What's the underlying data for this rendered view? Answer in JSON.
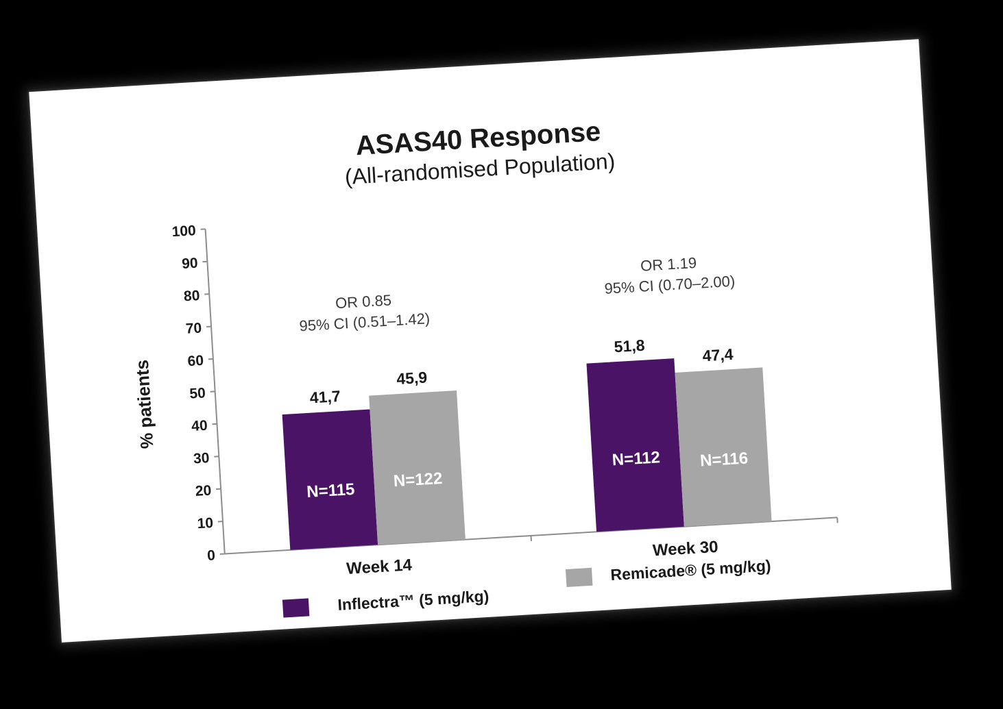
{
  "chart_data": {
    "type": "bar",
    "title": "ASAS40 Response",
    "subtitle": "(All-randomised Population)",
    "ylabel": "% patients",
    "ylim": [
      0,
      100
    ],
    "yticks": [
      "0",
      "10",
      "20",
      "30",
      "40",
      "50",
      "60",
      "70",
      "80",
      "90",
      "100"
    ],
    "categories": [
      "Week 14",
      "Week 30"
    ],
    "series": [
      {
        "name": "Inflectra™ (5 mg/kg)",
        "color": "#4b1365",
        "values": [
          41.7,
          51.8
        ],
        "value_labels": [
          "41,7",
          "51,8"
        ],
        "n_labels": [
          "N=115",
          "N=112"
        ]
      },
      {
        "name": "Remicade® (5 mg/kg)",
        "color": "#a6a6a6",
        "values": [
          45.9,
          47.4
        ],
        "value_labels": [
          "45,9",
          "47,4"
        ],
        "n_labels": [
          "N=122",
          "N=116"
        ]
      }
    ],
    "annotations": [
      {
        "category": "Week 14",
        "line1": "OR 0.85",
        "line2": "95% CI (0.51–1.42)"
      },
      {
        "category": "Week 30",
        "line1": "OR 1.19",
        "line2": "95% CI (0.70–2.00)"
      }
    ],
    "legend_position": "bottom",
    "grid": false
  }
}
